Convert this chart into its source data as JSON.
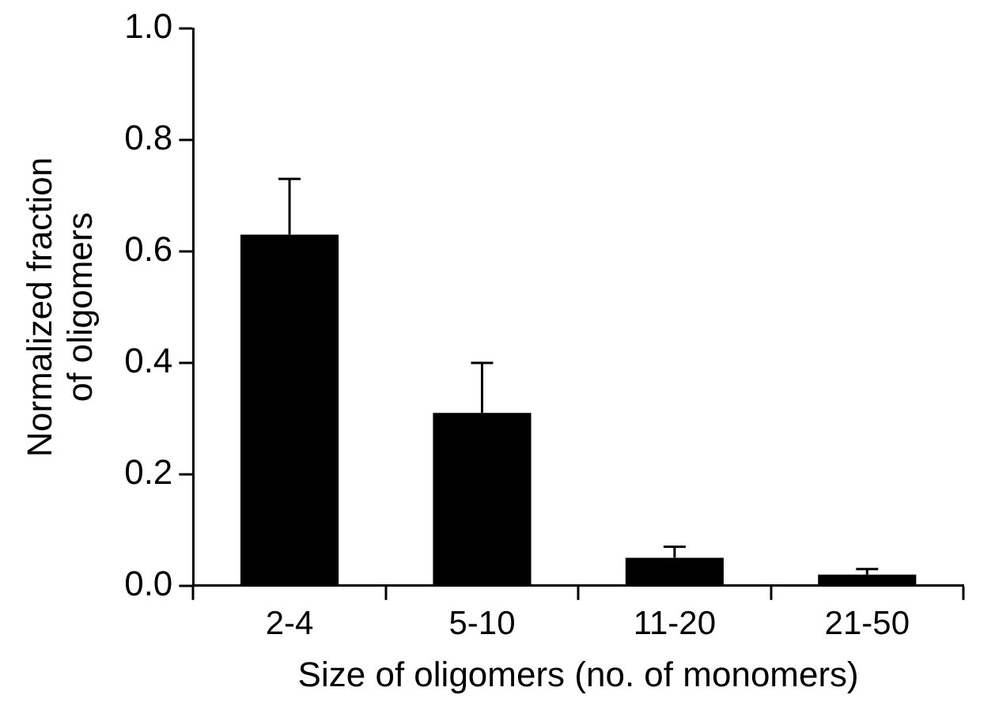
{
  "chart_data": {
    "type": "bar",
    "xlabel": "Size of oligomers (no. of monomers)",
    "ylabel": "Normalized fraction of oligomers",
    "categories": [
      "2-4",
      "5-10",
      "11-20",
      "21-50"
    ],
    "values": [
      0.63,
      0.31,
      0.05,
      0.02
    ],
    "errors": [
      [
        0.63,
        0.73
      ],
      [
        0.31,
        0.4
      ],
      [
        0.05,
        0.07
      ],
      [
        0.02,
        0.03
      ]
    ],
    "color": "#000000",
    "ylim": [
      0,
      1
    ],
    "yticks": [
      {
        "value": 0,
        "label": "0.0"
      },
      {
        "value": 0.2,
        "label": "0.2"
      },
      {
        "value": 0.4,
        "label": "0.4"
      },
      {
        "value": 0.6,
        "label": "0.6"
      },
      {
        "value": 0.8,
        "label": "0.8"
      },
      {
        "value": 1,
        "label": "1.0"
      }
    ],
    "grid": false,
    "legend": false
  }
}
